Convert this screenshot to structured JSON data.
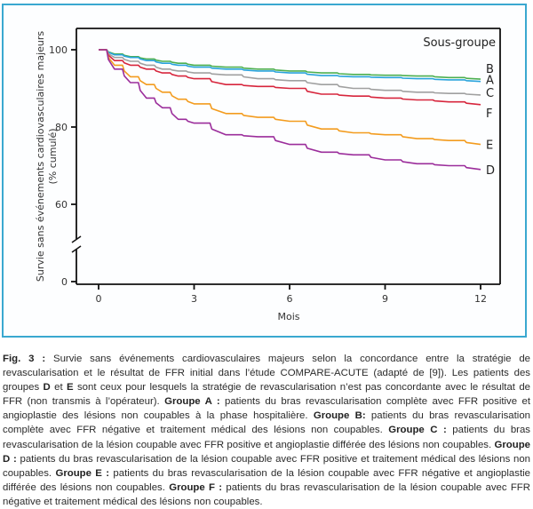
{
  "chart_data": {
    "type": "line",
    "title": "",
    "xlabel": "Mois",
    "ylabel": "Survie sans événements cardiovasculaires majeurs",
    "ylabel_line2": "(% cumulé)",
    "xlim": [
      0,
      12
    ],
    "ylim": [
      0,
      100
    ],
    "y_axis_break": [
      0,
      60
    ],
    "x_ticks": [
      0,
      3,
      6,
      9,
      12
    ],
    "y_ticks": [
      0,
      60,
      80,
      100
    ],
    "grid": false,
    "legend_title": "Sous-groupe",
    "legend_placement": "right",
    "x": [
      0,
      0.5,
      1,
      1.5,
      2,
      2.5,
      3,
      4,
      5,
      6,
      7,
      8,
      9,
      10,
      11,
      12
    ],
    "series": [
      {
        "name": "B",
        "color": "#4caf50",
        "values": [
          100,
          98.9,
          98.2,
          97.6,
          97.0,
          96.5,
          96.0,
          95.5,
          95.0,
          94.5,
          94.0,
          93.6,
          93.4,
          93.2,
          92.8,
          92.4
        ]
      },
      {
        "name": "A",
        "color": "#29a3dc",
        "values": [
          100,
          98.7,
          98.0,
          97.2,
          96.5,
          96.0,
          95.5,
          95.0,
          94.5,
          94.0,
          93.3,
          93.0,
          92.8,
          92.5,
          92.2,
          91.8
        ]
      },
      {
        "name": "C",
        "color": "#a0a0a0",
        "values": [
          100,
          98.0,
          97.0,
          96.0,
          95.0,
          94.5,
          94.0,
          93.5,
          92.5,
          92.0,
          91.0,
          90.0,
          89.5,
          89.0,
          88.7,
          88.3
        ]
      },
      {
        "name": "F",
        "color": "#d7263d",
        "values": [
          100,
          97.2,
          96.0,
          95.0,
          94.0,
          93.2,
          92.5,
          91.0,
          90.5,
          90.0,
          88.5,
          88.0,
          87.5,
          87.0,
          86.5,
          85.8
        ]
      },
      {
        "name": "E",
        "color": "#f39c1f",
        "values": [
          100,
          96.0,
          93.0,
          91.0,
          89.0,
          87.2,
          86.0,
          83.5,
          82.5,
          81.5,
          79.5,
          78.5,
          78.0,
          77.0,
          76.5,
          75.5
        ]
      },
      {
        "name": "D",
        "color": "#9b2d9b",
        "values": [
          100,
          95.0,
          91.5,
          87.5,
          85.0,
          82.0,
          81.0,
          78.0,
          77.5,
          75.5,
          73.5,
          72.8,
          71.5,
          70.5,
          70.0,
          69.0
        ]
      }
    ]
  },
  "caption": {
    "fig_label": "Fig. 3 :",
    "text_1": " Survie sans événements cardiovasculaires majeurs selon la concordance entre la stratégie de revascularisation et le résultat de FFR initial dans l’étude COMPARE-ACUTE (adapté de [9]). Les patients des groupes ",
    "group_d": "D",
    "text_et": " et ",
    "group_e": "E",
    "text_2": " sont ceux pour lesquels la stratégie de revascularisation n’est pas concordante avec le résultat de FFR (non transmis à l’opérateur). ",
    "groupe_a_label": "Groupe A :",
    "groupe_a_text": " patients du bras revascularisation complète avec FFR positive et angioplastie des lésions non coupables à la phase hospitalière. ",
    "groupe_b_label": "Groupe B:",
    "groupe_b_text": " patients du bras revascularisation complète avec FFR négative et traitement médical des lésions non coupables. ",
    "groupe_c_label": "Groupe C :",
    "groupe_c_text": " patients du bras revascularisation de la lésion coupable avec FFR positive et angioplastie différée des lésions non coupables. ",
    "groupe_d_label": "Groupe D :",
    "groupe_d_text": " patients du bras revascularisation de la lésion coupable avec FFR positive et traitement médical des lésions non coupables. ",
    "groupe_e_label": "Groupe E :",
    "groupe_e_text": " patients du bras revascularisation de la lésion coupable avec FFR négative et angioplastie différée des lésions non coupables. ",
    "groupe_f_label": "Groupe F :",
    "groupe_f_text": " patients du bras revascularisation de la lésion coupable avec FFR négative et traitement médical des lésions non coupables."
  }
}
